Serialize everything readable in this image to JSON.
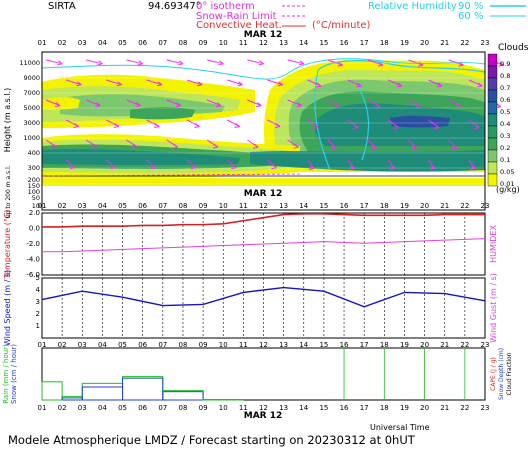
{
  "header": {
    "station": "SIRTA",
    "coords": "94.69347°",
    "legend_isotherm": "0° isotherm",
    "legend_snow_rain": "Snow-Rain Limit",
    "legend_conv_heat": "Convective Heat.",
    "conv_unit": "(°C/minute)",
    "legend_rh": "Relative Humidity",
    "rh_90": "90 %",
    "rh_60": "60 %"
  },
  "date_label": "MAR 12",
  "hours": [
    "01",
    "02",
    "03",
    "04",
    "05",
    "06",
    "07",
    "08",
    "09",
    "10",
    "11",
    "12",
    "13",
    "14",
    "15",
    "16",
    "17",
    "18",
    "19",
    "20",
    "21",
    "22",
    "23"
  ],
  "footer": {
    "title": "Modele Atmospherique LMDZ / Forecast starting on 20230312 at 0hUT",
    "xaxis": "Universal Time"
  },
  "colors": {
    "yellow": "#f3f300",
    "lime": "#bee65a",
    "green1": "#7cc86e",
    "green2": "#3ca55a",
    "teal": "#1e8c78",
    "blue": "#2850a0",
    "rh90": "#23d0f0",
    "wind_arrow": "#ff22ff",
    "temp_red": "#d42020",
    "humidex_mag": "#e040e0",
    "wind_blue": "#1414c8",
    "rain_green": "#20c020",
    "snow_blue": "#2040d0"
  },
  "chart_data": [
    {
      "type": "heatmap",
      "name": "clouds",
      "ylabel": "Height (m a.s.l.)",
      "ylabel_low": "Up to 200 m a.s.l.",
      "yticks": [
        "11000",
        "9000",
        "7000",
        "5000",
        "3000",
        "1000",
        "400",
        "300",
        "200",
        "150",
        "100",
        "50",
        "10"
      ],
      "colorbar_title": "Clouds",
      "colorbar_unit": "(g/kg)",
      "colorbar_ticks": [
        "0.9",
        "0.8",
        "0.7",
        "0.6",
        "0.5",
        "0.4",
        "0.3",
        "0.2",
        "0.1",
        "0.05",
        "0.01"
      ]
    },
    {
      "type": "line",
      "name": "temperature",
      "x": [
        "01",
        "02",
        "03",
        "04",
        "05",
        "06",
        "07",
        "08",
        "09",
        "10",
        "11",
        "12",
        "13",
        "14",
        "15",
        "16",
        "17",
        "18",
        "19",
        "20",
        "21",
        "22",
        "23"
      ],
      "ylim": [
        -6,
        2
      ],
      "yticks": [
        "2.0",
        "0.0",
        "-2.0",
        "-4.0",
        "-6.0"
      ],
      "ylabel": "Temperature (°C)",
      "ylabel_right": "HUMIDEX",
      "series": [
        {
          "values": [
            0.2,
            0.2,
            0.3,
            0.3,
            0.3,
            0.4,
            0.4,
            0.5,
            0.5,
            0.6,
            1.0,
            1.4,
            1.8,
            1.9,
            1.9,
            1.8,
            1.7,
            1.7,
            1.7,
            1.7,
            1.8,
            1.8,
            1.8
          ]
        },
        {
          "values": [
            -3.0,
            -3.0,
            -2.9,
            -2.8,
            -2.7,
            -2.6,
            -2.5,
            -2.4,
            -2.3,
            -2.2,
            -2.1,
            -2.0,
            -1.9,
            -1.8,
            -1.7,
            -1.8,
            -1.9,
            -1.8,
            -1.7,
            -1.6,
            -1.5,
            -1.4,
            -1.3
          ]
        }
      ]
    },
    {
      "type": "line",
      "name": "wind",
      "ylim": [
        0,
        5
      ],
      "yticks": [
        "5",
        "4",
        "3",
        "2",
        "1"
      ],
      "ylabel": "Wind Speed (m / s)",
      "ylabel_right": "Wind Gust (m / s)",
      "x": [
        "01",
        "03",
        "05",
        "07",
        "09",
        "11",
        "13",
        "15",
        "17",
        "19",
        "21",
        "23"
      ],
      "series": [
        {
          "values": [
            3.2,
            3.9,
            3.4,
            2.7,
            2.8,
            3.8,
            4.2,
            3.9,
            2.6,
            3.8,
            3.7,
            3.1
          ]
        }
      ]
    },
    {
      "type": "bar",
      "name": "precipitation",
      "ylim": [
        0,
        1
      ],
      "ylabel_left": "Rain (mm / hour)",
      "ylabel_left2": "Snow (cm / hour)",
      "ylabel_right": "CAPE (J / g)",
      "ylabel_right2": "Snow Depth (cm)",
      "ylabel_right3": "Cloud Fraction",
      "x_edges": [
        "01",
        "02",
        "03",
        "05",
        "07",
        "09",
        "11"
      ],
      "rain_values": [
        0.35,
        0.07,
        0.32,
        0.45,
        0.18,
        0.01
      ],
      "snow_values": [
        0.0,
        0.04,
        0.25,
        0.42,
        0.16,
        0.0
      ],
      "cape_spikes_at": [
        "16",
        "18",
        "20",
        "22"
      ]
    }
  ]
}
